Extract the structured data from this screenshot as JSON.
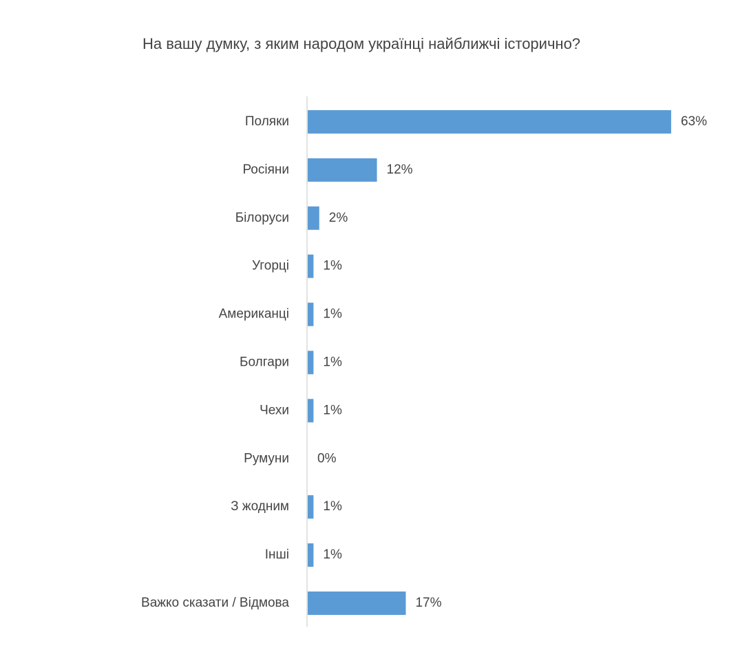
{
  "chart_data": {
    "type": "hbar",
    "title": "На вашу думку, з яким народом українці найближчі історично?",
    "categories": [
      "Поляки",
      "Росіяни",
      "Білоруси",
      "Угорці",
      "Американці",
      "Болгари",
      "Чехи",
      "Румуни",
      "З жодним",
      "Інші",
      "Важко сказати / Відмова"
    ],
    "values": [
      63,
      12,
      2,
      1,
      1,
      1,
      1,
      0,
      1,
      1,
      17
    ],
    "value_labels": [
      "63%",
      "12%",
      "2%",
      "1%",
      "1%",
      "1%",
      "1%",
      "0%",
      "1%",
      "1%",
      "17%"
    ],
    "color": "#5b9bd5"
  }
}
